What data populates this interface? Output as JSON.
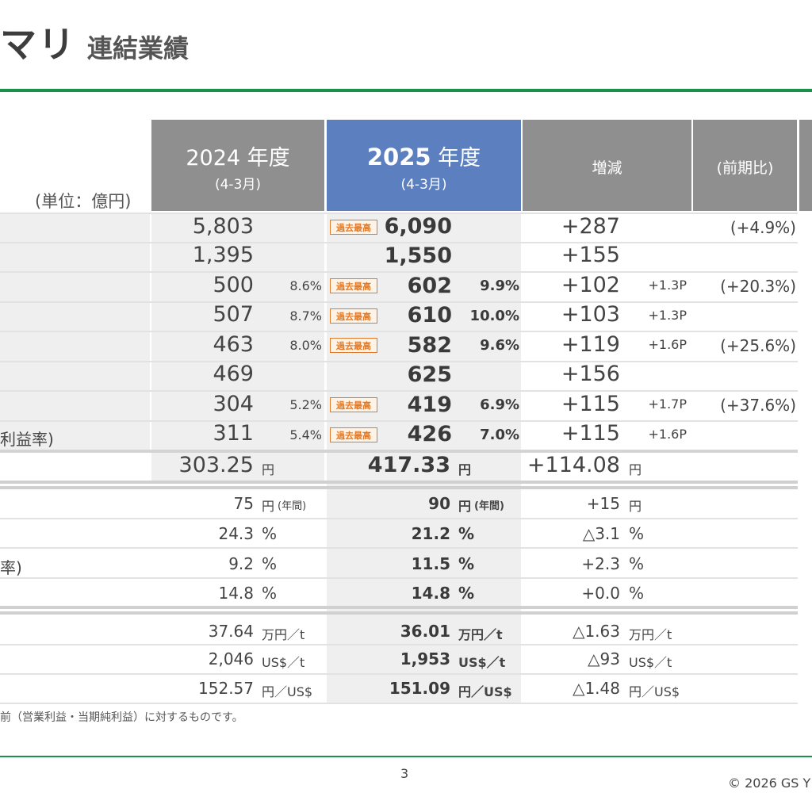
{
  "title": {
    "main": "マリ",
    "sub": "連結業績"
  },
  "unit_label": "(単位：億円)",
  "headers": {
    "fy2024": {
      "year": "2024",
      "suffix": "年度",
      "range": "(4-3月)"
    },
    "fy2025": {
      "year": "2025",
      "suffix": "年度",
      "range": "(4-3月)"
    },
    "change": "増減",
    "yoy": "(前期比)"
  },
  "record_badge": "過去最高",
  "row_labels": {
    "r8": "利益率)",
    "r11": "率)"
  },
  "rows": [
    {
      "prev": "5,803",
      "prev_pct": "",
      "cur": "6,090",
      "cur_pct": "",
      "chg": "+287",
      "chg_pt": "",
      "yoy": "(+4.9%)"
    },
    {
      "prev": "1,395",
      "prev_pct": "",
      "cur": "1,550",
      "cur_pct": "",
      "chg": "+155",
      "chg_pt": "",
      "yoy": ""
    },
    {
      "prev": "500",
      "prev_pct": "8.6%",
      "cur": "602",
      "cur_pct": "9.9%",
      "chg": "+102",
      "chg_pt": "+1.3P",
      "yoy": "(+20.3%)"
    },
    {
      "prev": "507",
      "prev_pct": "8.7%",
      "cur": "610",
      "cur_pct": "10.0%",
      "chg": "+103",
      "chg_pt": "+1.3P",
      "yoy": ""
    },
    {
      "prev": "463",
      "prev_pct": "8.0%",
      "cur": "582",
      "cur_pct": "9.6%",
      "chg": "+119",
      "chg_pt": "+1.6P",
      "yoy": "(+25.6%)"
    },
    {
      "prev": "469",
      "prev_pct": "",
      "cur": "625",
      "cur_pct": "",
      "chg": "+156",
      "chg_pt": "",
      "yoy": ""
    },
    {
      "prev": "304",
      "prev_pct": "5.2%",
      "cur": "419",
      "cur_pct": "6.9%",
      "chg": "+115",
      "chg_pt": "+1.7P",
      "yoy": "(+37.6%)"
    },
    {
      "prev": "311",
      "prev_pct": "5.4%",
      "cur": "426",
      "cur_pct": "7.0%",
      "chg": "+115",
      "chg_pt": "+1.6P",
      "yoy": ""
    }
  ],
  "eps": {
    "prev": "303.25",
    "cur": "417.33",
    "chg": "+114.08",
    "unit": "円"
  },
  "dividend": {
    "prev": "75",
    "cur": "90",
    "chg": "+15",
    "unit": "円",
    "annual": "(年間)"
  },
  "ratios": [
    {
      "prev": "24.3",
      "cur": "21.2",
      "chg": "△3.1",
      "unit": "%"
    },
    {
      "prev": "9.2",
      "cur": "11.5",
      "chg": "+2.3",
      "unit": "%"
    },
    {
      "prev": "14.8",
      "cur": "14.8",
      "chg": "+0.0",
      "unit": "%"
    }
  ],
  "markets": [
    {
      "prev": "37.64",
      "cur": "36.01",
      "chg": "△1.63",
      "unit": "万円／t"
    },
    {
      "prev": "2,046",
      "cur": "1,953",
      "chg": "△93",
      "unit": "US$／t"
    },
    {
      "prev": "152.57",
      "cur": "151.09",
      "chg": "△1.48",
      "unit": "円／US$"
    }
  ],
  "note": "前（営業利益・当期純利益）に対するものです。",
  "page_number": "3",
  "copyright": "© 2026 GS Y"
}
